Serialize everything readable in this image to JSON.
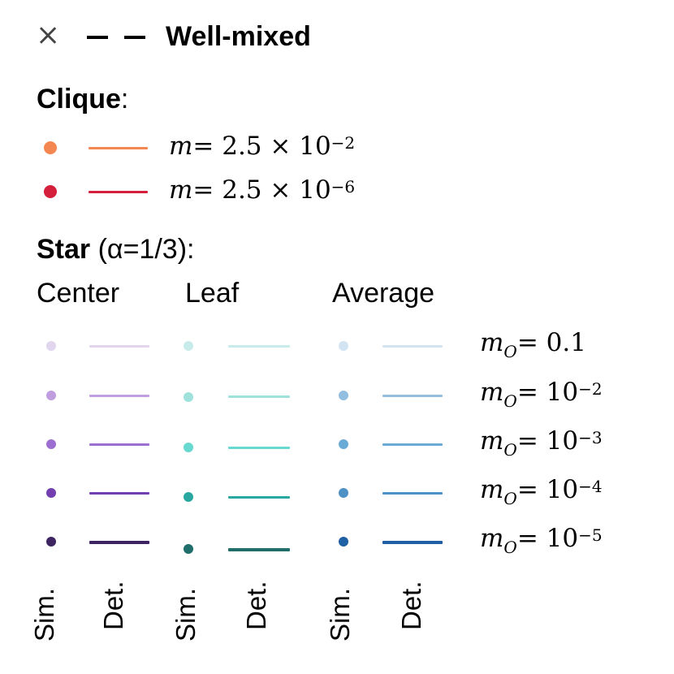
{
  "well_mixed": {
    "marker_glyph": "×",
    "label": "Well-mixed"
  },
  "clique": {
    "title": "Clique",
    "colon": ":",
    "rows": [
      {
        "color": "#f4874f",
        "m_label": "m",
        "eq": "= 2.5 × 10",
        "exp": "−2"
      },
      {
        "color": "#d41f3d",
        "m_label": "m",
        "eq": "= 2.5 × 10",
        "exp": "−6"
      }
    ]
  },
  "star": {
    "title": "Star",
    "alpha_text": "(α=1/3):",
    "columns": [
      "Center",
      "Leaf",
      "Average"
    ],
    "rows": [
      {
        "center": "#e2d6ef",
        "leaf": "#c8ecea",
        "average": "#d2e3f1",
        "label_base": "m",
        "label_sub": "O",
        "label_eq": "= 0.1",
        "label_exp": ""
      },
      {
        "center": "#c09ddf",
        "leaf": "#9fe2dc",
        "average": "#94bedf",
        "label_base": "m",
        "label_sub": "O",
        "label_eq": "= 10",
        "label_exp": "−2"
      },
      {
        "center": "#9d6fd1",
        "leaf": "#67d9d0",
        "average": "#6aaad6",
        "label_base": "m",
        "label_sub": "O",
        "label_eq": "= 10",
        "label_exp": "−3"
      },
      {
        "center": "#733fb0",
        "leaf": "#2aa7a0",
        "average": "#4e91c5",
        "label_base": "m",
        "label_sub": "O",
        "label_eq": "= 10",
        "label_exp": "−4"
      },
      {
        "center": "#3e2461",
        "leaf": "#1f6e69",
        "average": "#1f5fa3",
        "label_base": "m",
        "label_sub": "O",
        "label_eq": "= 10",
        "label_exp": "−5"
      }
    ]
  },
  "footer_labels": {
    "sim": "Sim.",
    "det": "Det."
  }
}
